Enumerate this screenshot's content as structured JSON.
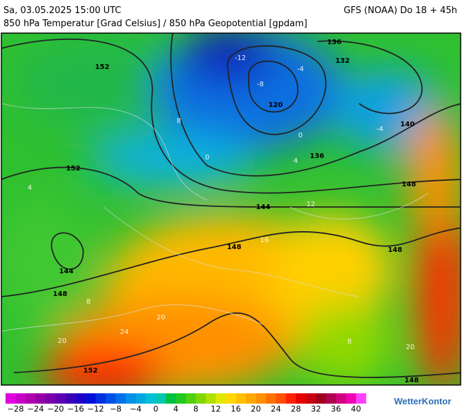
{
  "header": {
    "datetime": "Sa, 03.05.2025 15:00 UTC",
    "model": "GFS (NOAA) Do 18 + 45h",
    "subtitle": "850 hPa Temperatur [Grad Celsius] / 850 hPa Geopotential [gpdam]"
  },
  "map": {
    "geopotential_labels": [
      "152",
      "152",
      "144",
      "148",
      "136",
      "132",
      "120",
      "140",
      "136",
      "148",
      "144",
      "148",
      "148",
      "152",
      "148"
    ],
    "temperature_labels": [
      "-12",
      "-8",
      "-4",
      "8",
      "0",
      "-4",
      "4",
      "0",
      "4",
      "8",
      "20",
      "24",
      "20",
      "16",
      "12",
      "20",
      "8"
    ]
  },
  "colorbar": {
    "colors": [
      "#e000e0",
      "#c800c8",
      "#b000b0",
      "#9400a8",
      "#7a00a8",
      "#5a00b0",
      "#3c00b8",
      "#1e00c8",
      "#0010d8",
      "#0030e0",
      "#0050e8",
      "#0070e8",
      "#0090e8",
      "#00a8e0",
      "#00c0d8",
      "#00c8b0",
      "#00c040",
      "#20c820",
      "#50d010",
      "#80d800",
      "#b0e000",
      "#e0e800",
      "#ffd800",
      "#ffc000",
      "#ffa800",
      "#ff9000",
      "#ff7000",
      "#ff5000",
      "#ff2000",
      "#e80000",
      "#c80010",
      "#a00020",
      "#b00050",
      "#d00080",
      "#f000b0",
      "#ff40ff"
    ],
    "ticks": [
      "−28",
      "−24",
      "−20",
      "−16",
      "−12",
      "−8",
      "−4",
      "0",
      "4",
      "8",
      "12",
      "16",
      "20",
      "24",
      "28",
      "32",
      "36",
      "40"
    ]
  },
  "brand": "WetterKontor"
}
